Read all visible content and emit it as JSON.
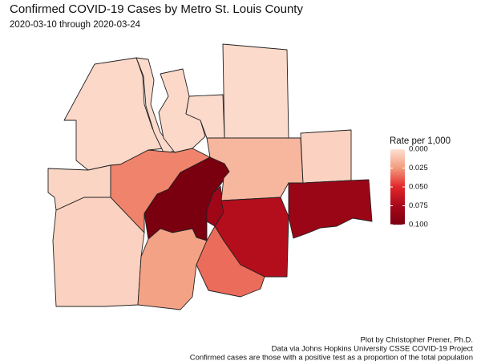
{
  "chart_data": {
    "type": "choropleth",
    "title": "Confirmed COVID-19 Cases by Metro St. Louis County",
    "subtitle": "2020-03-10 through 2020-03-24",
    "legend_title": "Rate per 1,000",
    "values": [
      0.003,
      0.002,
      0.003,
      0.002,
      0.002,
      0.004,
      0.005,
      0.03,
      0.1,
      0.08,
      0.015,
      0.07,
      0.022,
      0.035,
      0.005,
      0.082
    ],
    "scale_lim": [
      0,
      0.1
    ],
    "scale_ticks": [
      {
        "value": 0,
        "label": "0.000"
      },
      {
        "value": 0.025,
        "label": "0.025"
      },
      {
        "value": 0.05,
        "label": "0.050"
      },
      {
        "value": 0.075,
        "label": "0.075"
      },
      {
        "value": 0.1,
        "label": "0.100"
      }
    ],
    "colors": [
      "#fde0d2",
      "#f39a7c",
      "#e2262a",
      "#a8081a",
      "#7a0010"
    ],
    "caption": [
      "Plot by Christopher Prener, Ph.D.",
      "Data via Johns Hopkins University CSSE COVID-19 Project",
      "Confirmed cases are those with a positive test as a proportion of the total population"
    ]
  }
}
